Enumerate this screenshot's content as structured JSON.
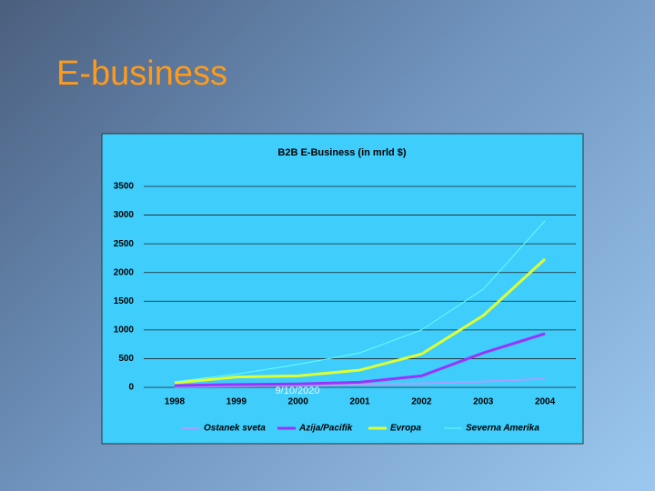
{
  "slide": {
    "title": "E-business",
    "date": "9/10/2020"
  },
  "chart_data": {
    "type": "line",
    "title": "B2B E-Business  (in mrld $)",
    "categories": [
      "1998",
      "1999",
      "2000",
      "2001",
      "2002",
      "2003",
      "2004"
    ],
    "series": [
      {
        "name": "Ostanek sveta",
        "color": "#a9a0ff",
        "line_width": 2,
        "values": [
          10,
          20,
          30,
          50,
          70,
          100,
          150
        ]
      },
      {
        "name": "Azija/Pacifik",
        "color": "#9933ff",
        "line_width": 3,
        "values": [
          30,
          50,
          60,
          90,
          200,
          600,
          935
        ]
      },
      {
        "name": "Evropa",
        "color": "#ddff33",
        "line_width": 3,
        "values": [
          80,
          180,
          200,
          300,
          580,
          1250,
          2235
        ]
      },
      {
        "name": "Severna Amerika",
        "color": "#66ffff",
        "line_width": 1,
        "values": [
          100,
          230,
          400,
          600,
          1000,
          1710,
          2900
        ]
      }
    ],
    "ylim": [
      0,
      3500
    ],
    "yticks": [
      0,
      500,
      1000,
      1500,
      2000,
      2500,
      3000,
      3500
    ],
    "grid": true
  }
}
